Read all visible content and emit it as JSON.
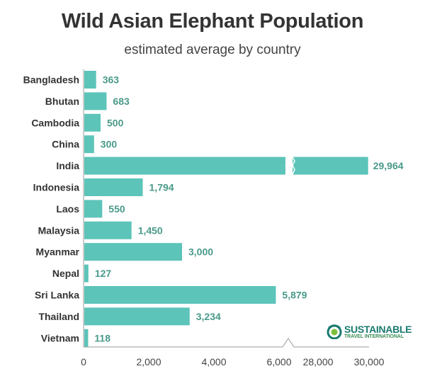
{
  "title": "Wild Asian Elephant Population",
  "subtitle": "estimated average by country",
  "colors": {
    "bar": "#5cc4b9",
    "value_label": "#4a9a8a",
    "axis": "#999999",
    "text": "#333333"
  },
  "logo": {
    "line1": "SUSTAINABLE",
    "line2": "TRAVEL INTERNATIONAL"
  },
  "chart_data": {
    "type": "bar",
    "orientation": "horizontal",
    "title": "Wild Asian Elephant Population",
    "subtitle": "estimated average by country",
    "xlabel": "",
    "ylabel": "",
    "categories": [
      "Bangladesh",
      "Bhutan",
      "Cambodia",
      "China",
      "India",
      "Indonesia",
      "Laos",
      "Malaysia",
      "Myanmar",
      "Nepal",
      "Sri Lanka",
      "Thailand",
      "Vietnam"
    ],
    "values": [
      363,
      683,
      500,
      300,
      29964,
      1794,
      550,
      1450,
      3000,
      127,
      5879,
      3234,
      118
    ],
    "value_labels": [
      "363",
      "683",
      "500",
      "300",
      "29,964",
      "1,794",
      "550",
      "1,450",
      "3,000",
      "127",
      "5,879",
      "3,234",
      "118"
    ],
    "x_ticks": [
      "0",
      "2,000",
      "4,000",
      "6,000",
      "28,000",
      "30,000"
    ],
    "axis_break": {
      "from": 6200,
      "to": 27600
    },
    "xlim": [
      0,
      30000
    ],
    "grid": false,
    "legend": null
  }
}
